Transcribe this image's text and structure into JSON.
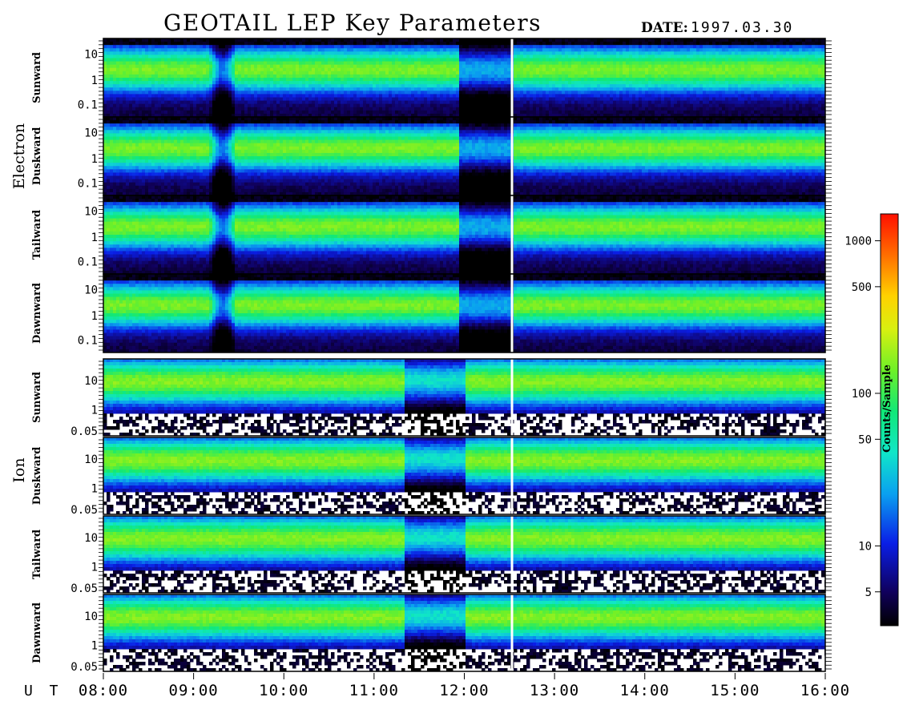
{
  "title": "GEOTAIL LEP Key Parameters",
  "date_label": "DATE:",
  "date_value": "1997.03.30",
  "groups": [
    {
      "name": "Electron",
      "panels": [
        "Sunward",
        "Duskward",
        "Tailward",
        "Dawnward"
      ]
    },
    {
      "name": "Ion",
      "panels": [
        "Sunward",
        "Duskward",
        "Tailward",
        "Dawnward"
      ]
    }
  ],
  "electron_yticks": [
    "10",
    "1",
    "0.1"
  ],
  "ion_yticks": [
    "10",
    "1",
    "0.05"
  ],
  "time_axis_label": "U T",
  "time_ticks": [
    "08:00",
    "09:00",
    "10:00",
    "11:00",
    "12:00",
    "13:00",
    "14:00",
    "15:00",
    "16:00"
  ],
  "colorbar": {
    "label": "Counts/Sample",
    "ticks": [
      "1000",
      "500",
      "100",
      "50",
      "10",
      "5"
    ],
    "tick_values": [
      1000,
      500,
      100,
      50,
      10,
      5
    ],
    "range": [
      3,
      1500
    ],
    "scale": "log"
  },
  "chart_data": {
    "type": "heatmap",
    "title": "GEOTAIL LEP Key Parameters",
    "xlabel": "U T",
    "x_range": [
      "08:00",
      "16:00"
    ],
    "data_gap_at": "12:30",
    "panels": [
      {
        "species": "Electron",
        "direction": "Sunward",
        "yscale": "log",
        "ylim": [
          0.05,
          20
        ]
      },
      {
        "species": "Electron",
        "direction": "Duskward",
        "yscale": "log",
        "ylim": [
          0.05,
          20
        ]
      },
      {
        "species": "Electron",
        "direction": "Tailward",
        "yscale": "log",
        "ylim": [
          0.05,
          20
        ]
      },
      {
        "species": "Electron",
        "direction": "Dawnward",
        "yscale": "log",
        "ylim": [
          0.05,
          20
        ]
      },
      {
        "species": "Ion",
        "direction": "Sunward",
        "yscale": "log",
        "ylim": [
          0.04,
          30
        ]
      },
      {
        "species": "Ion",
        "direction": "Duskward",
        "yscale": "log",
        "ylim": [
          0.04,
          30
        ]
      },
      {
        "species": "Ion",
        "direction": "Tailward",
        "yscale": "log",
        "ylim": [
          0.04,
          30
        ]
      },
      {
        "species": "Ion",
        "direction": "Dawnward",
        "yscale": "log",
        "ylim": [
          0.04,
          30
        ]
      }
    ],
    "colorscale": {
      "label": "Counts/Sample",
      "min": 3,
      "max": 1500,
      "scale": "log"
    }
  }
}
